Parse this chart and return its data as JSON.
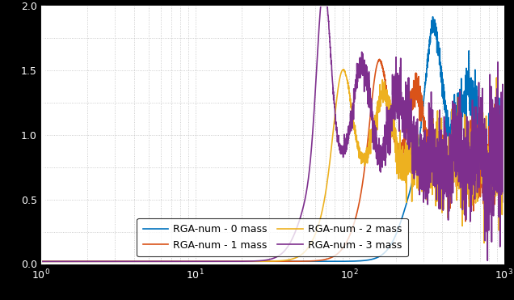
{
  "xlim_log": [
    0,
    3
  ],
  "ylim": [
    0,
    2.0
  ],
  "background_color": "#ffffff",
  "outer_color": "#000000",
  "grid_color": "#b0b0b0",
  "lines": [
    {
      "label": "RGA-num - 0 mass",
      "color": "#0072BD",
      "linewidth": 1.2
    },
    {
      "label": "RGA-num - 1 mass",
      "color": "#D95319",
      "linewidth": 1.2
    },
    {
      "label": "RGA-num - 2 mass",
      "color": "#EDB120",
      "linewidth": 1.2
    },
    {
      "label": "RGA-num - 3 mass",
      "color": "#7E2F8E",
      "linewidth": 1.2
    }
  ],
  "legend_fontsize": 9,
  "tick_fontsize": 9,
  "n_points": 4000,
  "figsize": [
    6.36,
    3.71
  ],
  "dpi": 100
}
